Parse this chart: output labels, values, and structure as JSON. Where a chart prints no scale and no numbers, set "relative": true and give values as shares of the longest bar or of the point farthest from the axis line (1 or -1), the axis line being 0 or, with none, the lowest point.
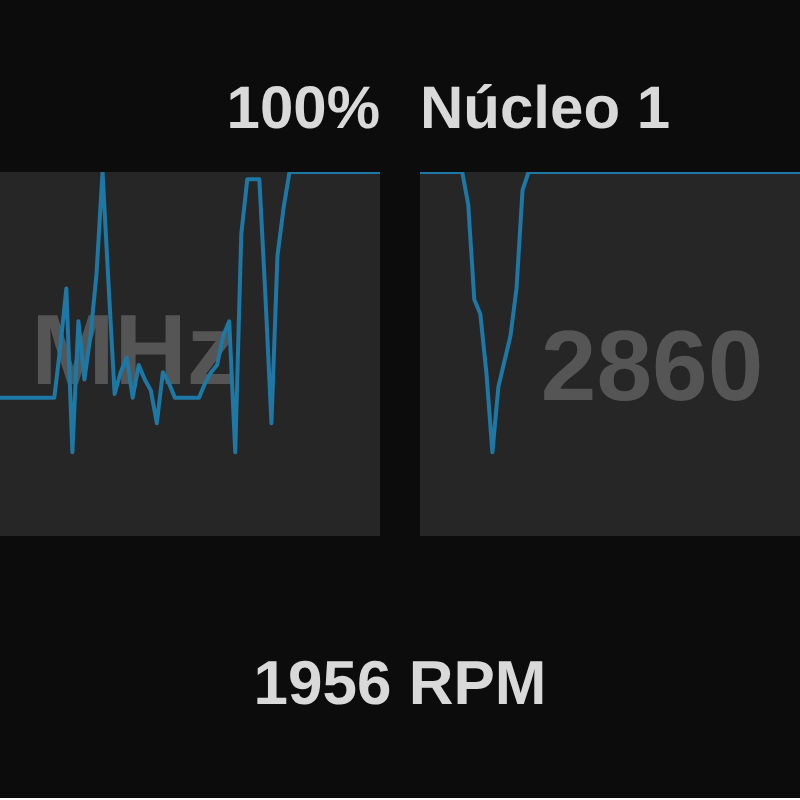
{
  "chart_data": [
    {
      "type": "line",
      "relative": true,
      "title": "100%",
      "categories": [
        null,
        null,
        null,
        null,
        null,
        null,
        null,
        null,
        null,
        null,
        null,
        null,
        null,
        null,
        null,
        null,
        null,
        null,
        null,
        null,
        null,
        null,
        null,
        null,
        null,
        null,
        null,
        null,
        null,
        null,
        null,
        null,
        null,
        null,
        null,
        null,
        null,
        null,
        null,
        null,
        null,
        null,
        null,
        null,
        null,
        null,
        null,
        null,
        null,
        null,
        null,
        null,
        null,
        null,
        null,
        null,
        null,
        null,
        null,
        null,
        null,
        null,
        null,
        null
      ],
      "series": [
        {
          "color": "#1e78a6",
          "values": [
            0.38,
            0.38,
            0.38,
            0.38,
            0.38,
            0.38,
            0.38,
            0.38,
            0.38,
            0.38,
            0.52,
            0.68,
            0.23,
            0.59,
            0.43,
            0.55,
            0.72,
            1.0,
            0.69,
            0.39,
            0.45,
            0.49,
            0.38,
            0.47,
            0.43,
            0.4,
            0.31,
            0.45,
            0.42,
            0.38,
            0.38,
            0.38,
            0.38,
            0.38,
            0.42,
            0.45,
            0.47,
            0.55,
            0.59,
            0.23,
            0.83,
            0.98,
            0.98,
            0.98,
            0.66,
            0.31,
            0.77,
            0.9,
            1.0,
            1.0,
            1.0,
            1.0,
            1.0,
            1.0,
            1.0,
            1.0,
            1.0,
            1.0,
            1.0,
            1.0,
            1.0,
            1.0,
            1.0,
            1.0
          ]
        }
      ],
      "annotations": [
        "MHz",
        "1956 RPM"
      ]
    },
    {
      "type": "line",
      "relative": true,
      "title": "Núcleo 1",
      "categories": [
        null,
        null,
        null,
        null,
        null,
        null,
        null,
        null,
        null,
        null,
        null,
        null,
        null,
        null,
        null,
        null,
        null,
        null,
        null,
        null,
        null,
        null,
        null,
        null,
        null,
        null,
        null,
        null,
        null,
        null,
        null,
        null,
        null,
        null,
        null,
        null,
        null,
        null,
        null,
        null,
        null,
        null,
        null,
        null,
        null,
        null,
        null,
        null,
        null,
        null,
        null,
        null,
        null,
        null,
        null,
        null,
        null,
        null,
        null,
        null,
        null,
        null,
        null,
        null
      ],
      "series": [
        {
          "color": "#1e78a6",
          "values": [
            1.0,
            1.0,
            1.0,
            1.0,
            1.0,
            1.0,
            1.0,
            1.0,
            0.91,
            0.65,
            0.61,
            0.45,
            0.23,
            0.41,
            0.48,
            0.55,
            0.68,
            0.95,
            1.0,
            1.0,
            1.0,
            1.0,
            1.0,
            1.0,
            1.0,
            1.0,
            1.0,
            1.0,
            1.0,
            1.0,
            1.0,
            1.0,
            1.0,
            1.0,
            1.0,
            1.0,
            1.0,
            1.0,
            1.0,
            1.0,
            1.0,
            1.0,
            1.0,
            1.0,
            1.0,
            1.0,
            1.0,
            1.0,
            1.0,
            1.0,
            1.0,
            1.0,
            1.0,
            1.0,
            1.0,
            1.0,
            1.0,
            1.0,
            1.0,
            1.0,
            1.0,
            1.0,
            1.0,
            1.0
          ]
        }
      ],
      "annotations": [
        "2860"
      ]
    }
  ]
}
